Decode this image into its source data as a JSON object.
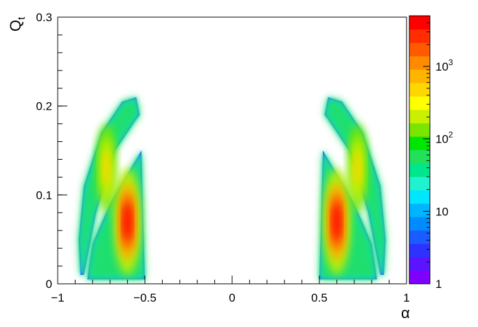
{
  "chart_data": {
    "type": "heatmap",
    "title": "",
    "xlabel": "α",
    "ylabel": "Q",
    "ylabel_subscript": "t",
    "xlim": [
      -1,
      1
    ],
    "ylim": [
      0,
      0.3
    ],
    "x_ticks": [
      {
        "value": -1,
        "label": "−1"
      },
      {
        "value": -0.5,
        "label": "−0.5"
      },
      {
        "value": 0,
        "label": "0"
      },
      {
        "value": 0.5,
        "label": "0.5"
      },
      {
        "value": 1,
        "label": "1"
      }
    ],
    "y_ticks": [
      {
        "value": 0,
        "label": "0"
      },
      {
        "value": 0.1,
        "label": "0.1"
      },
      {
        "value": 0.2,
        "label": "0.2"
      },
      {
        "value": 0.3,
        "label": "0.3"
      }
    ],
    "colorbar": {
      "scale": "log",
      "range": [
        1,
        5000
      ],
      "ticks": [
        {
          "value": 1,
          "label": "1",
          "exp": ""
        },
        {
          "value": 10,
          "label": "10",
          "exp": ""
        },
        {
          "value": 100,
          "label": "10",
          "exp": "2"
        },
        {
          "value": 1000,
          "label": "10",
          "exp": "3"
        }
      ],
      "colors": [
        "#7f00ff",
        "#5a14ff",
        "#2d32ff",
        "#1a5cff",
        "#008cff",
        "#00b4ff",
        "#00e6ff",
        "#20f2d0",
        "#00e68c",
        "#22e05a",
        "#00e600",
        "#7ae600",
        "#c8f000",
        "#ffff00",
        "#ffd700",
        "#ffb400",
        "#ff8c00",
        "#ff5a00",
        "#ff2d00",
        "#ff0000"
      ]
    },
    "bands": [
      {
        "name": "lower-left",
        "points": [
          [
            -0.83,
            0.005
          ],
          [
            -0.6,
            0.005
          ],
          [
            -0.5,
            0.005
          ],
          [
            -0.52,
            0.15
          ],
          [
            -0.58,
            0.13
          ],
          [
            -0.7,
            0.09
          ],
          [
            -0.8,
            0.045
          ],
          [
            -0.82,
            0.02
          ]
        ]
      },
      {
        "name": "upper-left",
        "points": [
          [
            -0.87,
            0.01
          ],
          [
            -0.85,
            0.01
          ],
          [
            -0.78,
            0.08
          ],
          [
            -0.67,
            0.15
          ],
          [
            -0.55,
            0.185
          ],
          [
            -0.53,
            0.19
          ],
          [
            -0.55,
            0.21
          ],
          [
            -0.63,
            0.205
          ],
          [
            -0.75,
            0.17
          ],
          [
            -0.85,
            0.11
          ],
          [
            -0.88,
            0.05
          ]
        ]
      },
      {
        "name": "lower-right",
        "points": [
          [
            0.5,
            0.005
          ],
          [
            0.6,
            0.005
          ],
          [
            0.83,
            0.005
          ],
          [
            0.82,
            0.02
          ],
          [
            0.8,
            0.045
          ],
          [
            0.7,
            0.09
          ],
          [
            0.58,
            0.13
          ],
          [
            0.52,
            0.15
          ]
        ]
      },
      {
        "name": "upper-right",
        "points": [
          [
            0.87,
            0.01
          ],
          [
            0.85,
            0.01
          ],
          [
            0.78,
            0.08
          ],
          [
            0.67,
            0.15
          ],
          [
            0.55,
            0.185
          ],
          [
            0.53,
            0.19
          ],
          [
            0.55,
            0.21
          ],
          [
            0.63,
            0.205
          ],
          [
            0.75,
            0.17
          ],
          [
            0.85,
            0.11
          ],
          [
            0.88,
            0.05
          ]
        ]
      }
    ],
    "hotspots": [
      {
        "name": "left-lower-peak",
        "x": -0.6,
        "y": 0.07,
        "rx": 0.08,
        "ry": 0.06,
        "level": 5000
      },
      {
        "name": "right-lower-peak",
        "x": 0.6,
        "y": 0.07,
        "rx": 0.08,
        "ry": 0.06,
        "level": 5000
      },
      {
        "name": "left-upper-ridge",
        "x": -0.72,
        "y": 0.13,
        "rx": 0.06,
        "ry": 0.05,
        "level": 300
      },
      {
        "name": "right-upper-ridge",
        "x": 0.72,
        "y": 0.13,
        "rx": 0.06,
        "ry": 0.05,
        "level": 300
      }
    ]
  }
}
